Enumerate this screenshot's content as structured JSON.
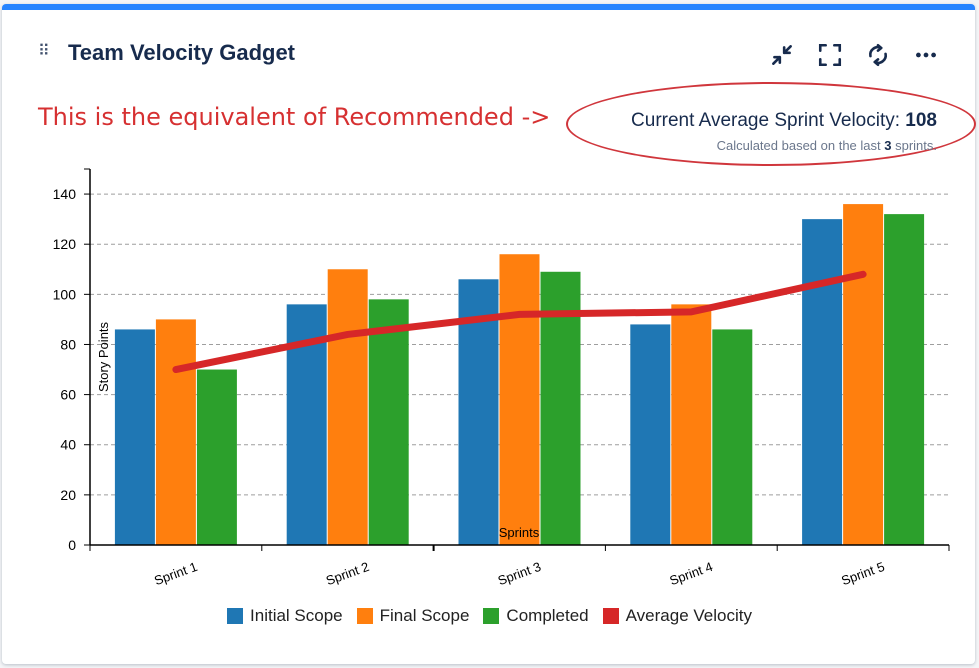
{
  "gadget": {
    "title": "Team Velocity Gadget",
    "toolbar": {
      "collapse_icon": "collapse-arrows-icon",
      "fullscreen_icon": "fullscreen-icon",
      "refresh_icon": "refresh-icon",
      "more_icon": "more-horizontal-icon"
    },
    "accent_color": "#2684ff"
  },
  "annotation": {
    "text": "This is the equivalent of Recommended ->",
    "color": "#d63031"
  },
  "velocity": {
    "label": "Current Average Sprint Velocity: ",
    "value": "108",
    "sub_prefix": "Calculated based on the last ",
    "sub_count": "3",
    "sub_suffix": " sprints."
  },
  "chart_data": {
    "type": "bar",
    "title": "",
    "xlabel": "Sprints",
    "ylabel": "Story Points",
    "ylim": [
      0,
      150
    ],
    "yticks": [
      0,
      20,
      40,
      60,
      80,
      100,
      120,
      140
    ],
    "categories": [
      "Sprint 1",
      "Sprint 2",
      "Sprint 3",
      "Sprint 4",
      "Sprint 5"
    ],
    "series": [
      {
        "name": "Initial Scope",
        "color": "#1f77b4",
        "values": [
          86,
          96,
          106,
          88,
          130
        ]
      },
      {
        "name": "Final Scope",
        "color": "#ff7f0e",
        "values": [
          90,
          110,
          116,
          96,
          136
        ]
      },
      {
        "name": "Completed",
        "color": "#2ca02c",
        "values": [
          70,
          98,
          109,
          86,
          132
        ]
      }
    ],
    "line_series": {
      "name": "Average Velocity",
      "color": "#d62728",
      "values": [
        70,
        84,
        92,
        93,
        108
      ]
    },
    "grid": true,
    "legend": "bottom-center"
  }
}
